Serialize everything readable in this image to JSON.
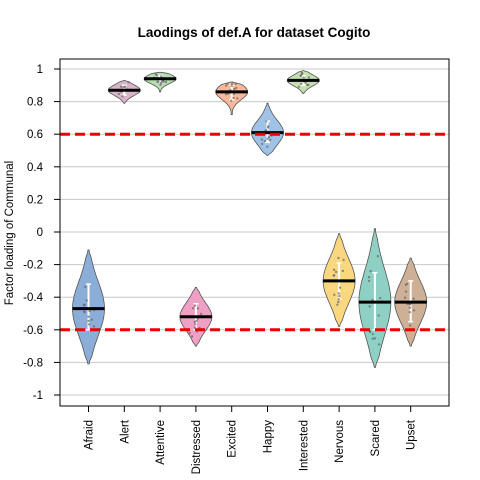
{
  "chart_data": {
    "type": "violin",
    "title": "Laodings of def.A for dataset Cogito",
    "xlabel": "",
    "ylabel": "Factor loading of Communal",
    "ylim": [
      -1.05,
      1.1
    ],
    "yticks": [
      -1,
      -0.8,
      -0.6,
      -0.4,
      -0.2,
      0,
      0.2,
      0.4,
      0.6,
      0.8,
      1
    ],
    "ytick_labels": [
      "-1",
      "-0.8",
      "-0.6",
      "-0.4",
      "-0.2",
      "0",
      "0.2",
      "0.4",
      "0.6",
      "0.8",
      "1"
    ],
    "grid": "horizontal",
    "reference_lines": [
      {
        "y": 0.6,
        "color": "#ee0000",
        "style": "dashed"
      },
      {
        "y": -0.6,
        "color": "#ee0000",
        "style": "dashed"
      }
    ],
    "categories": [
      "Afraid",
      "Alert",
      "Attentive",
      "Distressed",
      "Excited",
      "Happy",
      "Interested",
      "Nervous",
      "Scared",
      "Upset"
    ],
    "series": [
      {
        "category": "Afraid",
        "color": "#8aaed8",
        "mean": -0.47,
        "min": -0.81,
        "max": -0.11,
        "q1": -0.6,
        "q3": -0.32
      },
      {
        "category": "Alert",
        "color": "#d8b4c8",
        "mean": 0.87,
        "min": 0.79,
        "max": 0.93,
        "q1": 0.84,
        "q3": 0.9
      },
      {
        "category": "Attentive",
        "color": "#b8ddb4",
        "mean": 0.94,
        "min": 0.86,
        "max": 0.98,
        "q1": 0.92,
        "q3": 0.96
      },
      {
        "category": "Distressed",
        "color": "#f0a0c4",
        "mean": -0.52,
        "min": -0.7,
        "max": -0.34,
        "q1": -0.6,
        "q3": -0.44
      },
      {
        "category": "Excited",
        "color": "#f7b999",
        "mean": 0.86,
        "min": 0.72,
        "max": 0.92,
        "q1": 0.81,
        "q3": 0.9
      },
      {
        "category": "Happy",
        "color": "#9fc2e6",
        "mean": 0.61,
        "min": 0.47,
        "max": 0.79,
        "q1": 0.55,
        "q3": 0.68
      },
      {
        "category": "Interested",
        "color": "#c5e0b0",
        "mean": 0.93,
        "min": 0.85,
        "max": 0.99,
        "q1": 0.9,
        "q3": 0.96
      },
      {
        "category": "Nervous",
        "color": "#f8d77f",
        "mean": -0.3,
        "min": -0.58,
        "max": -0.01,
        "q1": -0.41,
        "q3": -0.19
      },
      {
        "category": "Scared",
        "color": "#8fd0c4",
        "mean": -0.43,
        "min": -0.83,
        "max": 0.02,
        "q1": -0.6,
        "q3": -0.25
      },
      {
        "category": "Upset",
        "color": "#cdb096",
        "mean": -0.43,
        "min": -0.7,
        "max": -0.16,
        "q1": -0.55,
        "q3": -0.3
      }
    ]
  }
}
